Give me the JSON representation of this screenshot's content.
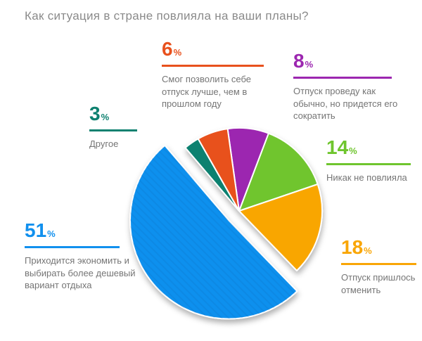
{
  "chart_data": {
    "type": "pie",
    "title": "Как ситуация в стране повлияла на ваши планы?",
    "unit": "%",
    "start_angle_deg": -8,
    "legend_position": "callouts-around",
    "segments": [
      {
        "label": "Отпуск проведу как обычно, но придется его сократить",
        "value": 8,
        "color": "#9c27b0",
        "exploded": false
      },
      {
        "label": "Никак не повлияла",
        "value": 14,
        "color": "#6fc52e",
        "exploded": false
      },
      {
        "label": "Отпуск пришлось отменить",
        "value": 18,
        "color": "#f9a606",
        "exploded": false
      },
      {
        "label": "Приходится экономить и выбирать более дешевый вариант отдыха",
        "value": 51,
        "color": "#1190ee",
        "exploded": true
      },
      {
        "label": "Другое",
        "value": 3,
        "color": "#0e8170",
        "exploded": false
      },
      {
        "label": "Смог позволить себе отпуск лучше, чем в прошлом году",
        "value": 6,
        "color": "#e8511d",
        "exploded": false
      }
    ]
  }
}
